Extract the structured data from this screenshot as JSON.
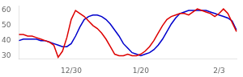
{
  "chart_data": {
    "type": "line",
    "categories": [
      null,
      null,
      null,
      null,
      null,
      null,
      null,
      null,
      null,
      null,
      null,
      null,
      "12/30",
      null,
      null,
      null,
      null,
      null,
      null,
      null,
      null,
      null,
      null,
      null,
      null,
      null,
      null,
      null,
      "1/20",
      null,
      null,
      null,
      null,
      null,
      null,
      null,
      null,
      null,
      null,
      null,
      null,
      null,
      null,
      null,
      null,
      null,
      "2/3",
      null,
      null,
      null,
      null
    ],
    "series": [
      {
        "color": "#dd0000",
        "values": [
          44,
          44,
          43,
          43,
          42,
          41,
          40,
          39,
          37,
          29,
          33,
          42,
          54,
          60,
          58,
          56,
          53,
          50,
          48,
          45,
          41,
          36,
          31,
          30,
          30,
          31,
          30,
          30,
          31,
          33,
          36,
          40,
          45,
          50,
          54,
          56,
          57,
          58,
          58,
          57,
          59,
          61,
          60,
          59,
          58,
          56,
          58,
          61,
          58,
          52,
          46
        ]
      },
      {
        "color": "#0000cc",
        "values": [
          40,
          41,
          41,
          41,
          41,
          40,
          40,
          39,
          38,
          37,
          36,
          36,
          38,
          43,
          49,
          54,
          56,
          57,
          57,
          56,
          54,
          51,
          47,
          43,
          38,
          35,
          32,
          31,
          30,
          31,
          32,
          34,
          37,
          41,
          46,
          51,
          55,
          58,
          59,
          60,
          60,
          60,
          60,
          60,
          59,
          58,
          57,
          56,
          55,
          53,
          47
        ]
      }
    ],
    "ylim": [
      28,
      63
    ],
    "yticks": [
      30,
      40,
      50,
      60
    ],
    "grid": false
  }
}
